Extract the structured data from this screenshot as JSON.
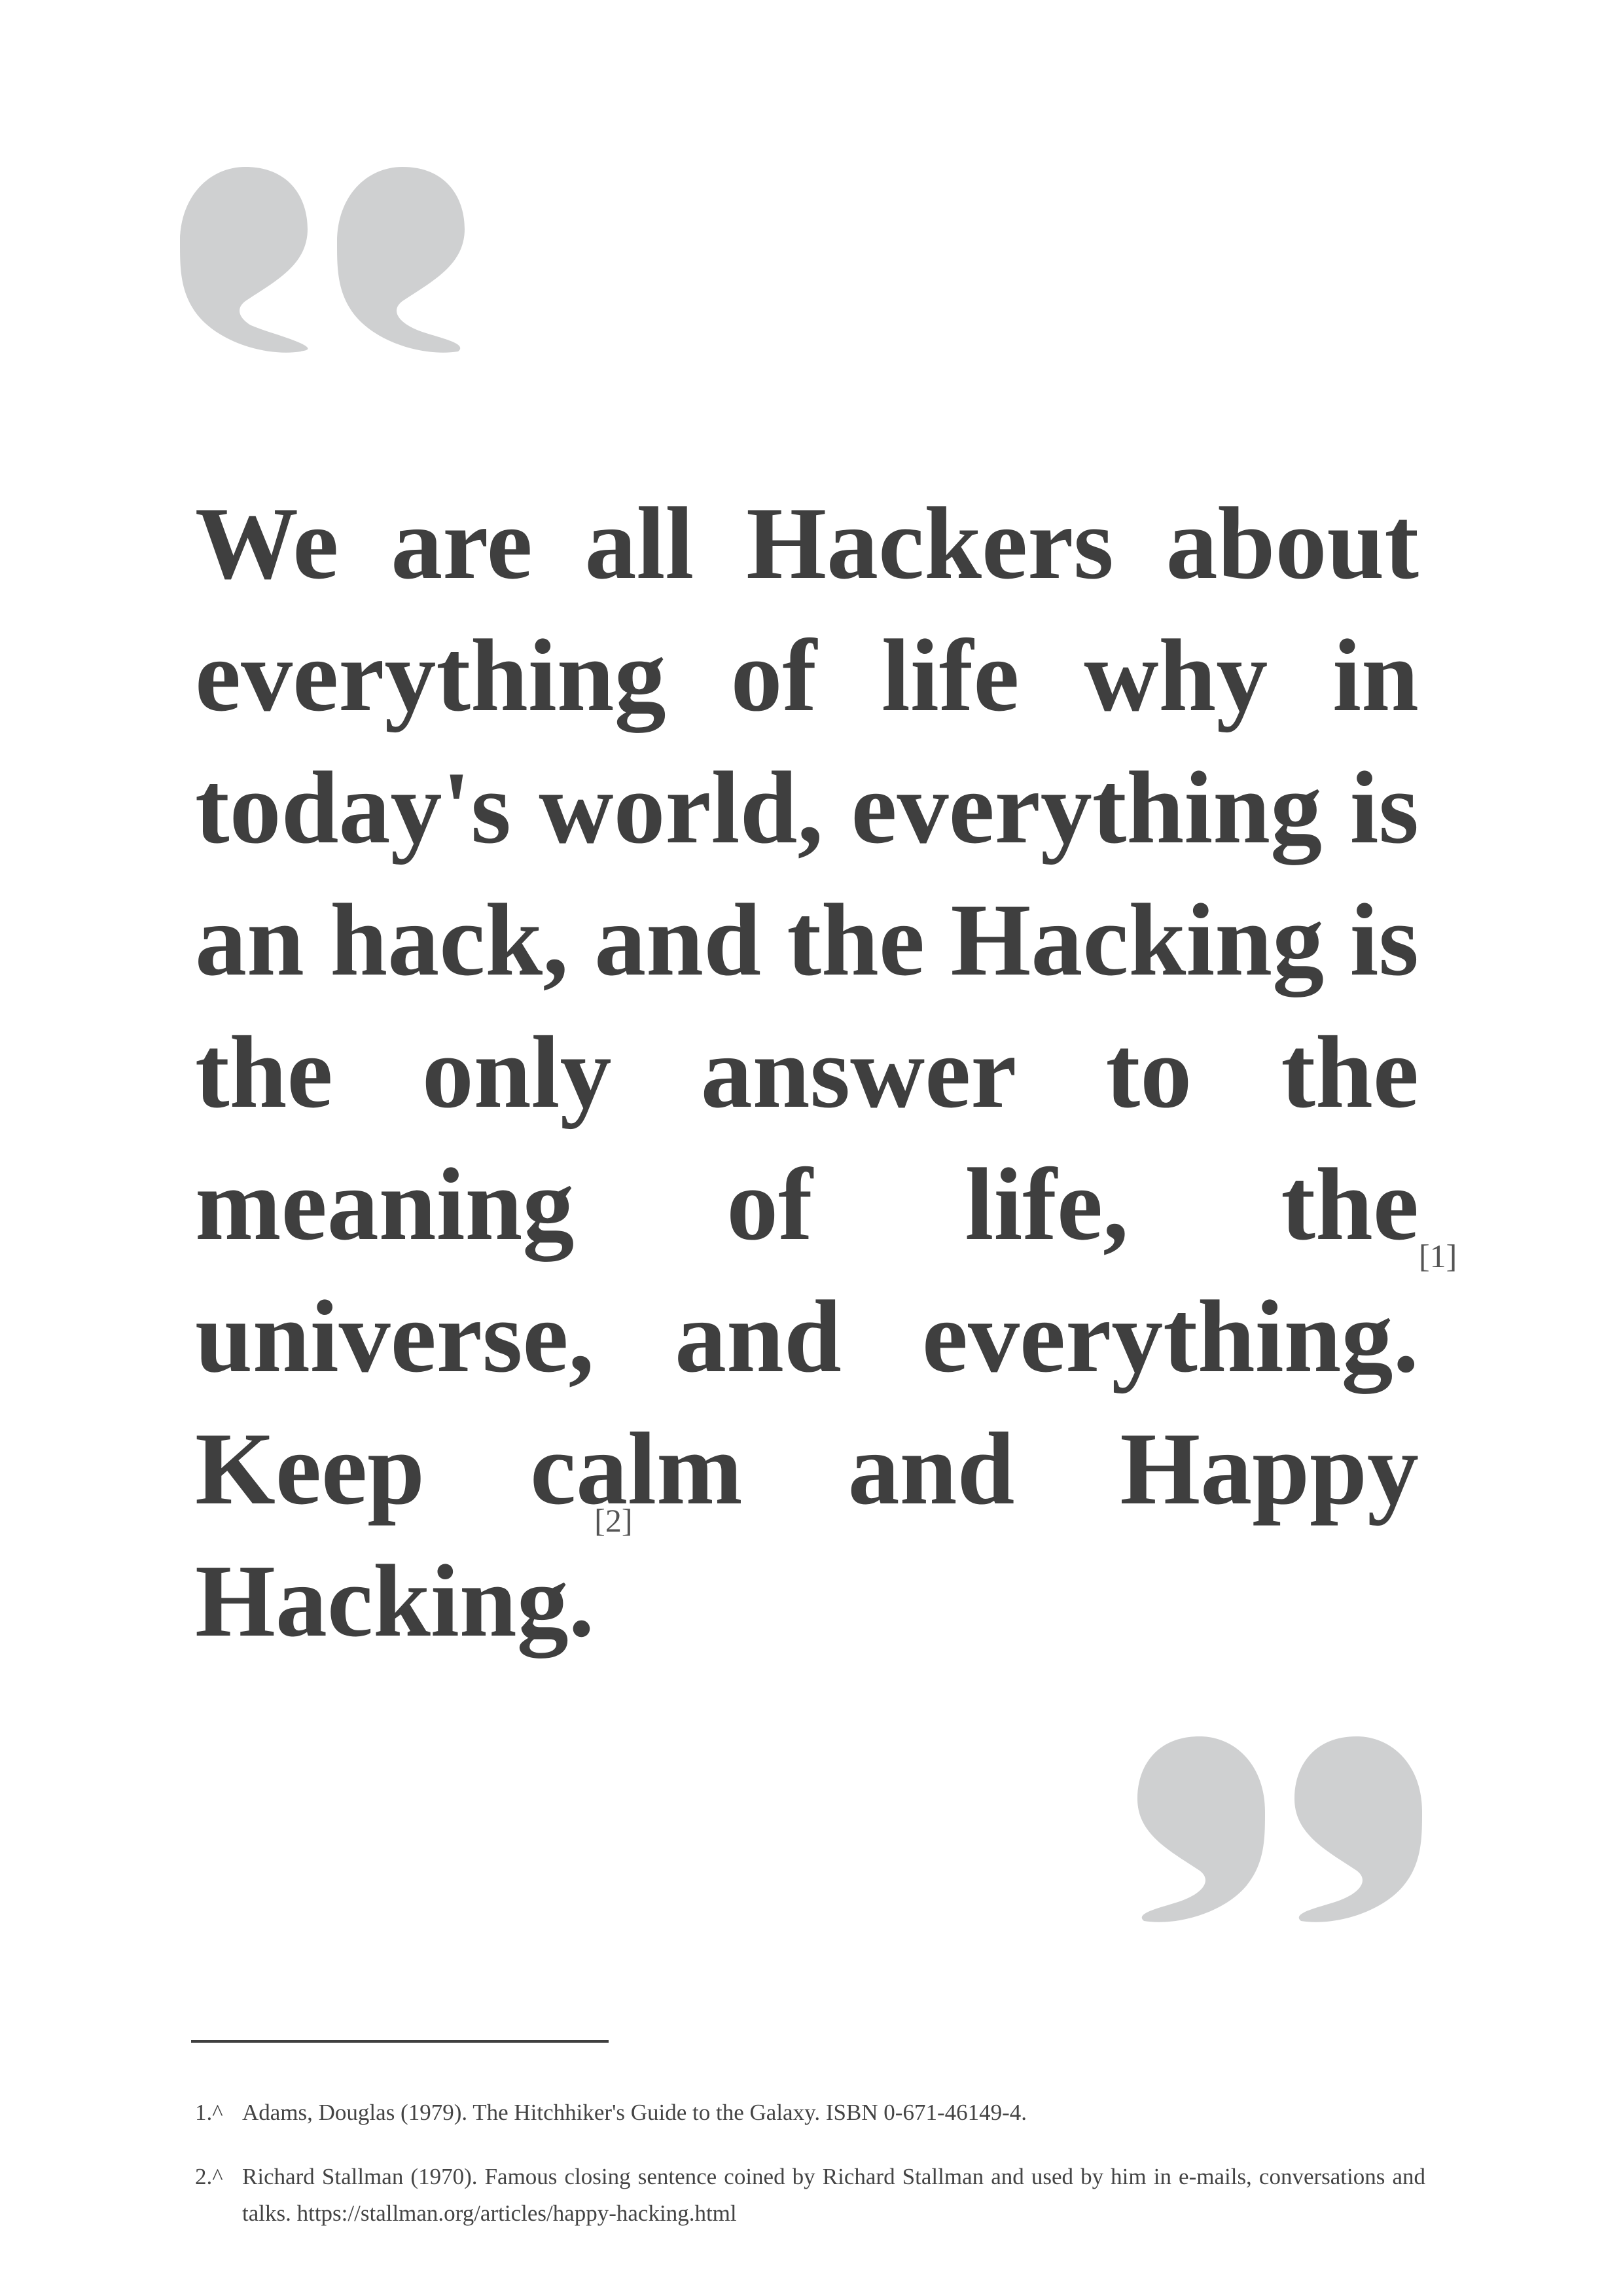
{
  "quote": {
    "lines": [
      {
        "words": [
          "We",
          "are",
          "all",
          "Hackers",
          "about"
        ]
      },
      {
        "words": [
          "everything",
          "of",
          "life",
          "why",
          "in"
        ]
      },
      {
        "words": [
          "today's",
          "world,",
          "everything",
          "is"
        ]
      },
      {
        "words": [
          "an",
          "hack,",
          "and",
          "the",
          "Hacking",
          "is"
        ]
      },
      {
        "words": [
          "the",
          "only",
          "answer",
          "to",
          "the"
        ]
      },
      {
        "words": [
          "meaning",
          "of",
          "life,",
          "the"
        ]
      },
      {
        "words": [
          "universe,",
          "and",
          "everything."
        ]
      },
      {
        "words": [
          "Keep",
          "calm",
          "and",
          "Happy"
        ]
      },
      {
        "words": [
          "Hacking."
        ]
      }
    ],
    "ref_1": "[1]",
    "ref_2": "[2]"
  },
  "footnotes": [
    {
      "marker": "1.^",
      "text": "Adams, Douglas (1979). The Hitchhiker's Guide to the Galaxy. ISBN 0-671-46149-4."
    },
    {
      "marker": "2.^",
      "text": "Richard Stallman (1970). Famous closing sentence coined by Richard Stallman and used by him in e-mails, conversations and talks. https://stallman.org/articles/happy-hacking.html"
    }
  ],
  "colors": {
    "quote_mark": "#cfd0d1",
    "text": "#3f3f3f"
  },
  "icons": {
    "open": "opening-quotation-mark-icon",
    "close": "closing-quotation-mark-icon"
  }
}
